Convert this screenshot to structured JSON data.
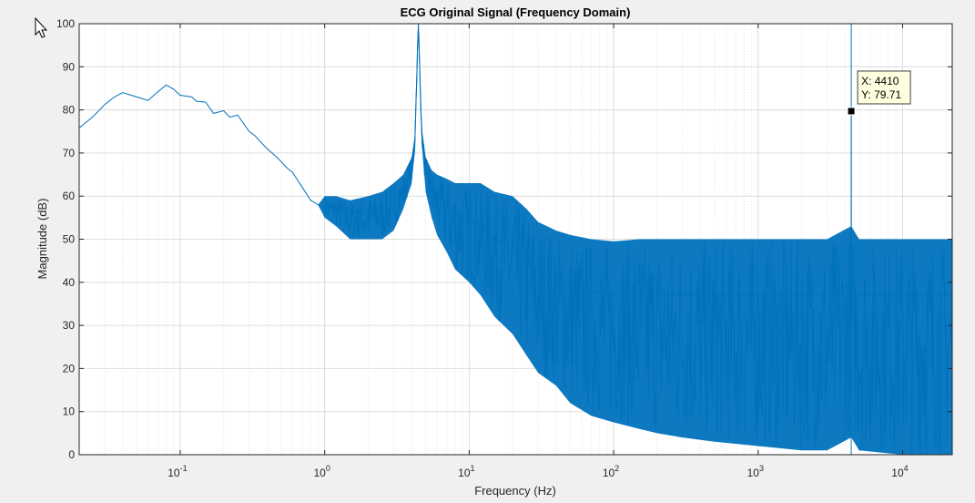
{
  "window": {
    "cursor_icon": "mouse-pointer-icon"
  },
  "chart_data": {
    "type": "line",
    "title": "ECG Original Signal (Frequency Domain)",
    "xlabel": "Frequency (Hz)",
    "ylabel": "Magnitude (dB)",
    "xscale": "log",
    "xlim": [
      0.02,
      22050
    ],
    "ylim": [
      0,
      100
    ],
    "grid": true,
    "minor_grid": true,
    "color": "#0072BD",
    "x_ticks": [
      {
        "value": 0.1,
        "base": "10",
        "exp": "-1"
      },
      {
        "value": 1,
        "base": "10",
        "exp": "0"
      },
      {
        "value": 10,
        "base": "10",
        "exp": "1"
      },
      {
        "value": 100,
        "base": "10",
        "exp": "2"
      },
      {
        "value": 1000,
        "base": "10",
        "exp": "3"
      },
      {
        "value": 10000,
        "base": "10",
        "exp": "4"
      }
    ],
    "y_ticks": [
      "0",
      "10",
      "20",
      "30",
      "40",
      "50",
      "60",
      "70",
      "80",
      "90",
      "100"
    ],
    "series": [
      {
        "x": [
          0.02,
          0.025,
          0.03,
          0.035,
          0.04,
          0.05,
          0.06,
          0.07,
          0.08,
          0.09,
          0.1,
          0.12,
          0.13,
          0.15,
          0.17,
          0.2,
          0.22,
          0.25,
          0.3,
          0.33,
          0.35,
          0.4,
          0.45,
          0.5,
          0.55,
          0.6,
          0.7,
          0.8,
          0.9,
          1.0,
          1.2,
          1.5,
          2.0,
          2.5,
          3.0,
          3.5,
          4.0,
          4.2,
          4.4,
          4.45,
          4.5,
          4.7,
          5.0,
          5.5,
          6.0,
          7.0,
          8.0,
          10,
          12,
          15,
          20,
          25,
          30,
          40,
          50,
          70,
          100,
          150,
          200,
          300,
          500,
          1000,
          2000,
          3000,
          4400,
          4410,
          4420,
          5000,
          10000,
          15000,
          22050
        ],
        "y": [
          75.8,
          78.5,
          81.2,
          83.0,
          84.0,
          83.0,
          82.2,
          84.2,
          85.8,
          84.8,
          83.4,
          83.0,
          82.0,
          81.8,
          79.2,
          79.8,
          78.3,
          78.8,
          75.0,
          74.0,
          73.0,
          71.0,
          69.5,
          68.0,
          66.5,
          65.5,
          62.0,
          59.0,
          58.0,
          57.0,
          57.0,
          56.0,
          57.0,
          58.0,
          60.0,
          62.0,
          66.0,
          72.0,
          95.0,
          100.0,
          95.0,
          74.0,
          66.0,
          62.0,
          60.0,
          58.0,
          56.0,
          55.0,
          53.0,
          50.0,
          48.0,
          45.0,
          43.0,
          41.0,
          39.0,
          38.0,
          37.5,
          37.0,
          37.0,
          37.0,
          37.0,
          37.0,
          37.0,
          37.0,
          40.0,
          79.71,
          40.0,
          37.0,
          37.0,
          37.0,
          37.0
        ],
        "spread_low": [
          0,
          0,
          0,
          0,
          0,
          0,
          0,
          0,
          0,
          0,
          0,
          0,
          0,
          0,
          0,
          0,
          0,
          0,
          0,
          0,
          0,
          0,
          0,
          0,
          0,
          0,
          0,
          0,
          0,
          2,
          4,
          6,
          7,
          8,
          8,
          5,
          3,
          2,
          1,
          0,
          1,
          2,
          5,
          7,
          9,
          11,
          13,
          15,
          16,
          18,
          20,
          22,
          24,
          25,
          27,
          29,
          30,
          31,
          32,
          33,
          34,
          35,
          36,
          36,
          36,
          0,
          36,
          36,
          37,
          37,
          37
        ],
        "spread_high": [
          0,
          0,
          0,
          0,
          0,
          0,
          0,
          0,
          0,
          0,
          0,
          0,
          0,
          0,
          0,
          0,
          0,
          0,
          0,
          0,
          0,
          0,
          0,
          0,
          0,
          0,
          0,
          0,
          0,
          3,
          3,
          3,
          3,
          3,
          3,
          3,
          3,
          2,
          1,
          0,
          1,
          2,
          3,
          4,
          5,
          6,
          7,
          8,
          10,
          11,
          12,
          12,
          11,
          11,
          12,
          12,
          12,
          13,
          13,
          13,
          13,
          13,
          13,
          13,
          13,
          0,
          13,
          13,
          13,
          13,
          13
        ]
      }
    ],
    "data_tip": {
      "x": 4410,
      "y": 79.71,
      "x_text": "X: 4410",
      "y_text": "Y: 79.71"
    }
  }
}
